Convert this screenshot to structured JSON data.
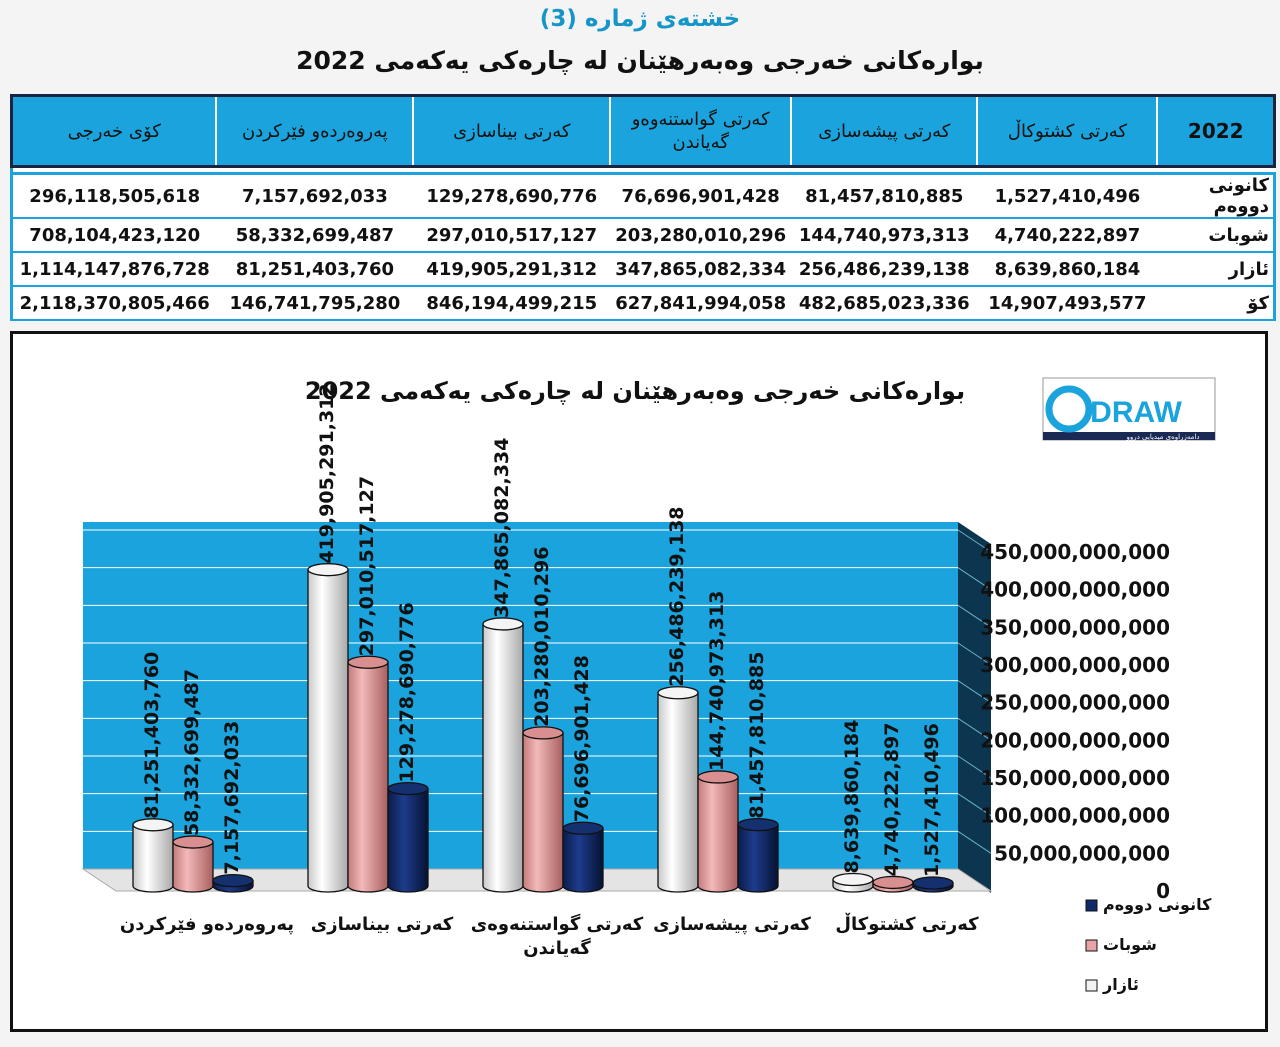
{
  "header": {
    "subtitle": "خشتەی ژمارە (3)",
    "title": "بوارەکانی خەرجی وەبەرهێنان لە چارەکی یەکەمی 2022"
  },
  "table": {
    "columns": [
      "2022",
      "کەرتی کشتوکاڵ",
      "کەرتی پیشەسازی",
      "کەرتی گواستنەوەو گەیاندن",
      "کەرتی بیناسازی",
      "پەروەردەو فێرکردن",
      "کۆی خەرجی"
    ],
    "rows": [
      {
        "label": "کانونی دووەم",
        "cells": [
          "1,527,410,496",
          "81,457,810,885",
          "76,696,901,428",
          "129,278,690,776",
          "7,157,692,033",
          "296,118,505,618"
        ]
      },
      {
        "label": "شوبات",
        "cells": [
          "4,740,222,897",
          "144,740,973,313",
          "203,280,010,296",
          "297,010,517,127",
          "58,332,699,487",
          "708,104,423,120"
        ]
      },
      {
        "label": "ئازار",
        "cells": [
          "8,639,860,184",
          "256,486,239,138",
          "347,865,082,334",
          "419,905,291,312",
          "81,251,403,760",
          "1,114,147,876,728"
        ]
      },
      {
        "label": "کۆ",
        "cells": [
          "14,907,493,577",
          "482,685,023,336",
          "627,841,994,058",
          "846,194,499,215",
          "146,741,795,280",
          "2,118,370,805,466"
        ]
      }
    ]
  },
  "logo": {
    "text": "DRAW",
    "tagline": "دامەزراوەی میدیایی دروو"
  },
  "chart_data": {
    "type": "bar",
    "title": "بوارەکانی خەرجی وەبەرهێنان لە چارەکی یەکەمی 2022",
    "categories": [
      "پەروەردەو فێرکردن",
      "کەرتی بیناسازی",
      "کەرتی گواستنەوەی گەیاندن",
      "کەرتی پیشەسازی",
      "کەرتی کشتوکاڵ"
    ],
    "series": [
      {
        "name": "ئازار",
        "color": "#f2f2f2",
        "values": [
          81251403760,
          419905291312,
          347865082334,
          256486239138,
          8639860184
        ],
        "labels": [
          "81,251,403,760",
          "419,905,291,312",
          "347,865,082,334",
          "256,486,239,138",
          "8,639,860,184"
        ]
      },
      {
        "name": "شوبات",
        "color": "#e8a4a4",
        "values": [
          58332699487,
          297010517127,
          203280010296,
          144740973313,
          4740222897
        ],
        "labels": [
          "58,332,699,487",
          "297,010,517,127",
          "203,280,010,296",
          "144,740,973,313",
          "4,740,222,897"
        ]
      },
      {
        "name": "کانونی دووەم",
        "color": "#0f2a6b",
        "values": [
          7157692033,
          129278690776,
          76696901428,
          81457810885,
          1527410496
        ],
        "labels": [
          "7,157,692,033",
          "129,278,690,776",
          "76,696,901,428",
          "81,457,810,885",
          "1,527,410,496"
        ]
      }
    ],
    "legend_order": [
      "کانونی دووەم",
      "شوبات",
      "ئازار"
    ],
    "y_ticks": [
      "0",
      "50,000,000,000",
      "100,000,000,000",
      "150,000,000,000",
      "200,000,000,000",
      "250,000,000,000",
      "300,000,000,000",
      "350,000,000,000",
      "400,000,000,000",
      "450,000,000,000"
    ],
    "ylim": [
      0,
      450000000000
    ],
    "y_axis_side": "right",
    "legend_position": "bottom-right",
    "wall_color": "#1aa3dc",
    "grid": true
  }
}
